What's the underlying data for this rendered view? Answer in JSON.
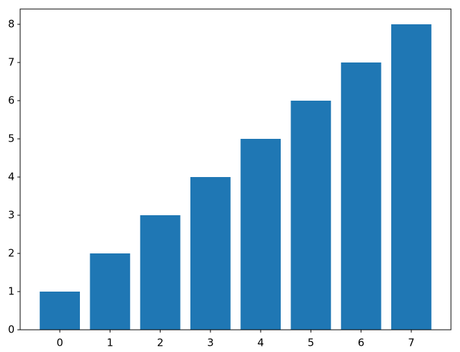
{
  "chart_data": {
    "type": "bar",
    "x": [
      0,
      1,
      2,
      3,
      4,
      5,
      6,
      7
    ],
    "values": [
      1,
      2,
      3,
      4,
      5,
      6,
      7,
      8
    ],
    "color": "#1f77b4",
    "xlim": [
      -0.79,
      7.79
    ],
    "xticks": [
      0,
      1,
      2,
      3,
      4,
      5,
      6,
      7
    ],
    "ylim": [
      0,
      8.4
    ],
    "yticks": [
      0,
      1,
      2,
      3,
      4,
      5,
      6,
      7,
      8
    ],
    "grid": false
  }
}
